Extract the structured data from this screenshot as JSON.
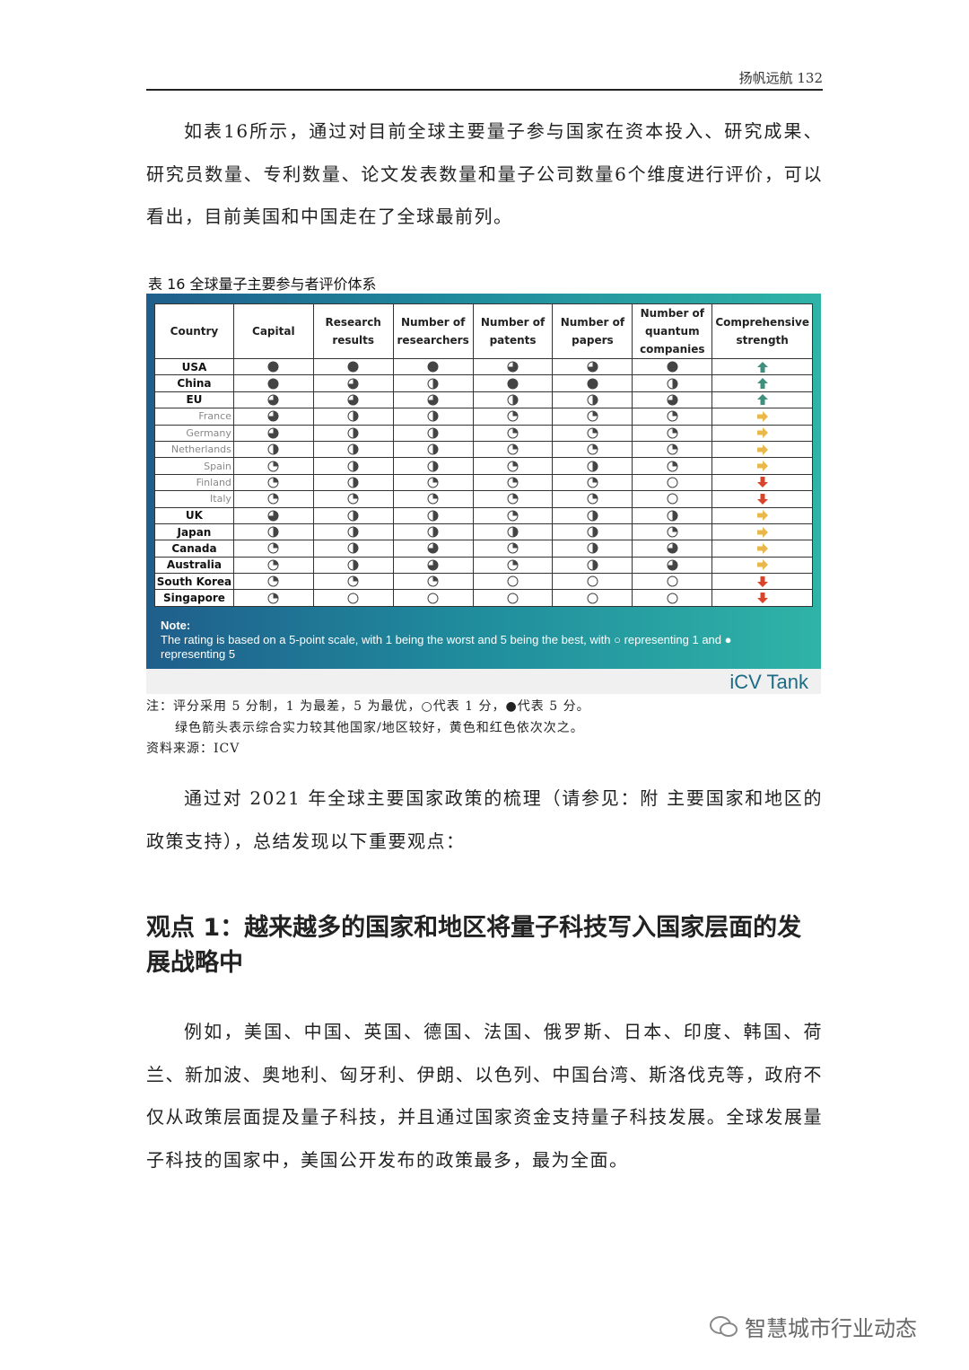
{
  "header": {
    "running_title": "扬帆远航 132"
  },
  "intro_paragraph": "如表16所示，通过对目前全球主要量子参与国家在资本投入、研究成果、研究员数量、专利数量、论文发表数量和量子公司数量6个维度进行评价，可以看出，目前美国和中国走在了全球最前列。",
  "table": {
    "caption": "表 16  全球量子主要参与者评价体系",
    "columns": [
      "Country",
      "Capital",
      "Research results",
      "Number of researchers",
      "Number of patents",
      "Number of papers",
      "Number of quantum companies",
      "Comprehensive strength"
    ],
    "rows": [
      {
        "country": "USA",
        "sub": false,
        "ratings": [
          5,
          5,
          5,
          4,
          4,
          5
        ],
        "strength": "up"
      },
      {
        "country": "China",
        "sub": false,
        "ratings": [
          5,
          4,
          3,
          5,
          5,
          3
        ],
        "strength": "up"
      },
      {
        "country": "EU",
        "sub": false,
        "ratings": [
          4,
          4,
          4,
          3,
          3,
          4
        ],
        "strength": "up"
      },
      {
        "country": "France",
        "sub": true,
        "ratings": [
          4,
          3,
          3,
          2,
          2,
          2
        ],
        "strength": "right"
      },
      {
        "country": "Germany",
        "sub": true,
        "ratings": [
          4,
          3,
          3,
          2,
          2,
          2
        ],
        "strength": "right"
      },
      {
        "country": "Netherlands",
        "sub": true,
        "ratings": [
          3,
          3,
          3,
          2,
          2,
          2
        ],
        "strength": "right"
      },
      {
        "country": "Spain",
        "sub": true,
        "ratings": [
          2,
          3,
          3,
          2,
          3,
          2
        ],
        "strength": "right"
      },
      {
        "country": "Finland",
        "sub": true,
        "ratings": [
          2,
          3,
          2,
          2,
          2,
          1
        ],
        "strength": "down"
      },
      {
        "country": "Italy",
        "sub": true,
        "ratings": [
          2,
          2,
          2,
          2,
          2,
          1
        ],
        "strength": "down"
      },
      {
        "country": "UK",
        "sub": false,
        "ratings": [
          4,
          3,
          3,
          2,
          3,
          3
        ],
        "strength": "right"
      },
      {
        "country": "Japan",
        "sub": false,
        "ratings": [
          3,
          3,
          3,
          3,
          3,
          2
        ],
        "strength": "right"
      },
      {
        "country": "Canada",
        "sub": false,
        "ratings": [
          2,
          3,
          4,
          2,
          3,
          4
        ],
        "strength": "right"
      },
      {
        "country": "Australia",
        "sub": false,
        "ratings": [
          2,
          3,
          4,
          2,
          3,
          4
        ],
        "strength": "right"
      },
      {
        "country": "South Korea",
        "sub": false,
        "ratings": [
          2,
          2,
          2,
          1,
          1,
          1
        ],
        "strength": "down"
      },
      {
        "country": "Singapore",
        "sub": false,
        "ratings": [
          2,
          1,
          1,
          1,
          1,
          1
        ],
        "strength": "down"
      }
    ],
    "rating_scale": {
      "min": 1,
      "max": 5
    },
    "strength_colors": {
      "up": "#3f8f7f",
      "right": "#e8b84a",
      "down": "#d9452b"
    },
    "note_title": "Note:",
    "note_text": "The rating is based on a 5-point scale, with 1 being the worst and 5 being the best, with ○ representing 1 and ● representing 5",
    "brand": "iCV Tank"
  },
  "footnotes": [
    "注：评分采用 5 分制，1 为最差，5 为最优，○代表 1 分，●代表 5 分。",
    "绿色箭头表示综合实力较其他国家/地区较好，黄色和红色依次次之。",
    "资料来源：ICV"
  ],
  "paragraph2": "通过对 2021 年全球主要国家政策的梳理（请参见：附 主要国家和地区的政策支持），总结发现以下重要观点：",
  "heading": "观点 1：越来越多的国家和地区将量子科技写入国家层面的发展战略中",
  "paragraph3": "例如，美国、中国、英国、德国、法国、俄罗斯、日本、印度、韩国、荷兰、新加波、奥地利、匈牙利、伊朗、以色列、中国台湾、斯洛伐克等，政府不仅从政策层面提及量子科技，并且通过国家资金支持量子科技发展。全球发展量子科技的国家中，美国公开发布的政策最多，最为全面。",
  "watermark": "智慧城市行业动态"
}
